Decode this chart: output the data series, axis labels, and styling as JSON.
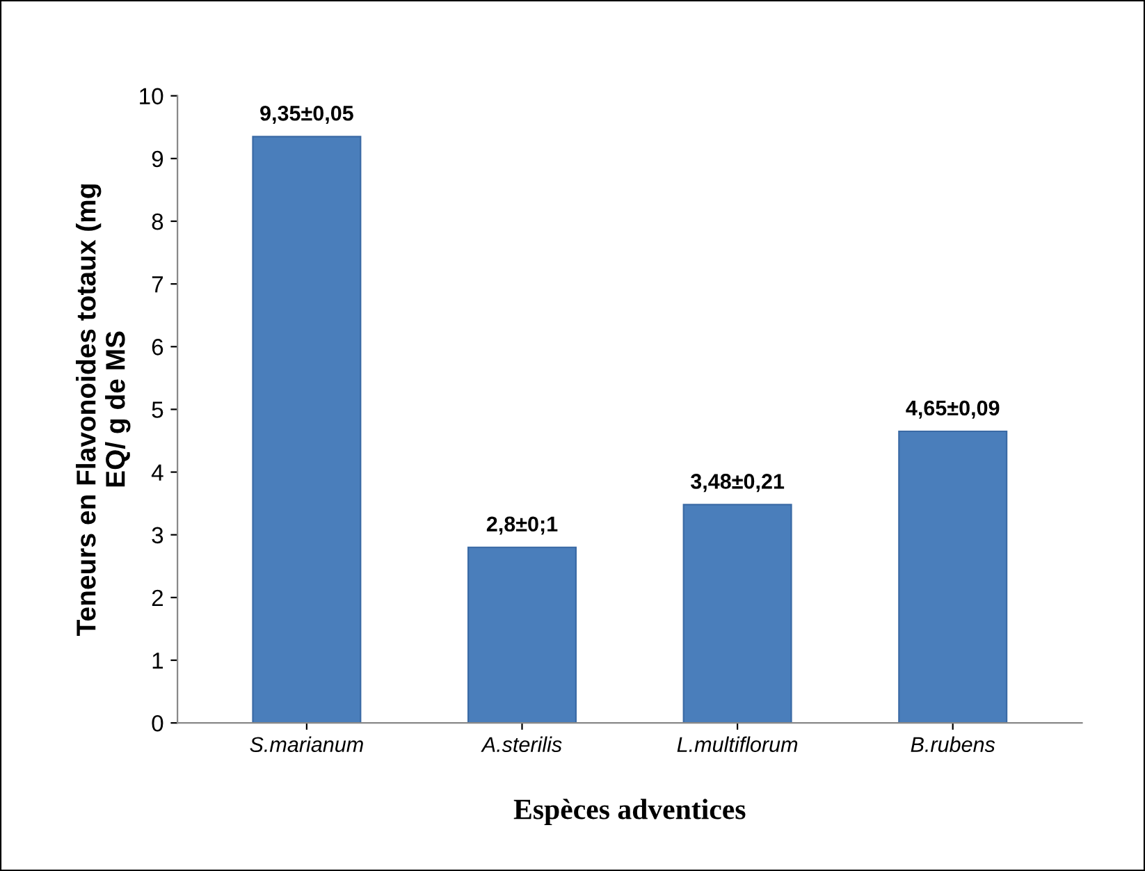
{
  "chart_data": {
    "type": "bar",
    "xlabel": "Espèces adventices",
    "ylabel": "Teneurs en Flavonoides totaux (mg\nEQ/ g de MS",
    "categories": [
      "S.marianum",
      "A.sterilis",
      "L.multiflorum",
      "B.rubens"
    ],
    "values": [
      9.35,
      2.8,
      3.48,
      4.65
    ],
    "value_labels": [
      "9,35±0,05",
      "2,8±0;1",
      "3,48±0,21",
      "4,65±0,09"
    ],
    "color": "#4a7ebb",
    "ylim": [
      0,
      10
    ],
    "yticks": [
      0,
      1,
      2,
      3,
      4,
      5,
      6,
      7,
      8,
      9,
      10
    ],
    "grid": false,
    "legend": false
  }
}
